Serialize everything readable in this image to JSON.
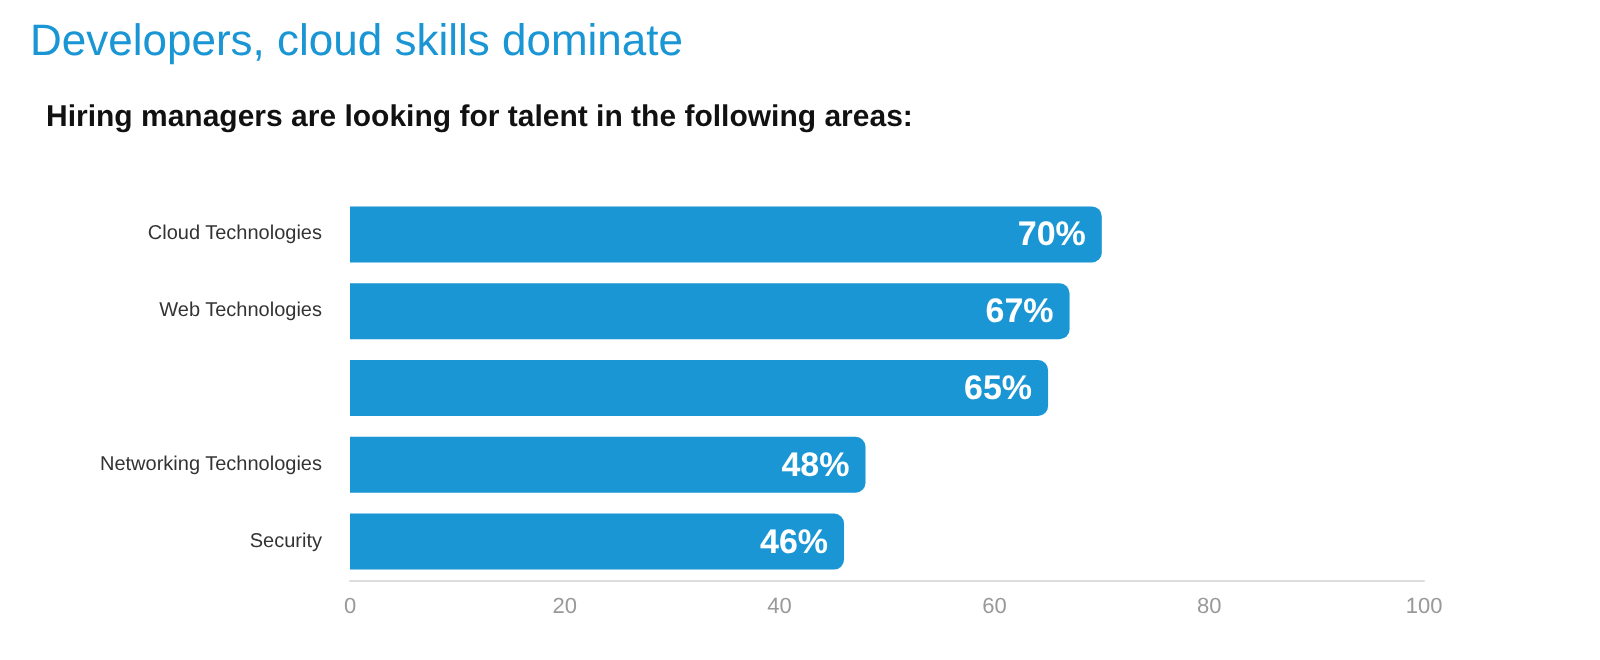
{
  "chart_data": {
    "type": "bar",
    "orientation": "horizontal",
    "title": "Developers, cloud skills dominate",
    "subtitle": "Hiring managers are looking for talent in the following areas:",
    "categories": [
      "Cloud Technologies",
      "Web Technologies",
      null,
      "Networking Technologies",
      "Security"
    ],
    "values": [
      70,
      67,
      65,
      48,
      46
    ],
    "value_labels": [
      "70%",
      "67%",
      "65%",
      "48%",
      "46%"
    ],
    "color": "#1a96d4",
    "xlim": [
      0,
      100
    ],
    "xticks": [
      0,
      20,
      40,
      60,
      80,
      100
    ]
  }
}
